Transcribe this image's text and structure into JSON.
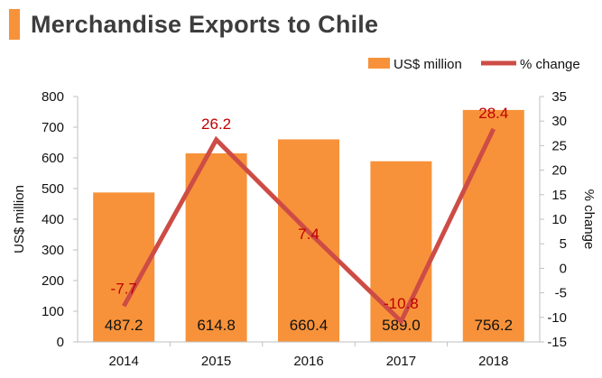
{
  "title": "Merchandise Exports to Chile",
  "colors": {
    "accent": "#f7923a",
    "bar": "#f7923a",
    "line": "#cd4c45",
    "pct_text": "#c00000",
    "axis": "#bfbfbf",
    "text": "#111111",
    "title": "#3d3d3d"
  },
  "chart_data": {
    "type": "bar",
    "categories": [
      "2014",
      "2015",
      "2016",
      "2017",
      "2018"
    ],
    "series": [
      {
        "name": "US$ million",
        "chart_type": "bar",
        "axis": "left",
        "values": [
          487.2,
          614.8,
          660.4,
          589.0,
          756.2
        ],
        "labels": [
          "487.2",
          "614.8",
          "660.4",
          "589.0",
          "756.2"
        ]
      },
      {
        "name": "% change",
        "chart_type": "line",
        "axis": "right",
        "values": [
          -7.7,
          26.2,
          7.4,
          -10.8,
          28.4
        ],
        "labels": [
          "-7.7",
          "26.2",
          "7.4",
          "-10.8",
          "28.4"
        ]
      }
    ],
    "ylabel": "US$ million",
    "y2label": "% change",
    "ylim": [
      0,
      800
    ],
    "y2lim": [
      -15,
      35
    ],
    "yticks": [
      "0",
      "100",
      "200",
      "300",
      "400",
      "500",
      "600",
      "700",
      "800"
    ],
    "y2ticks": [
      "-15",
      "-10",
      "-5",
      "0",
      "5",
      "10",
      "15",
      "20",
      "25",
      "30",
      "35"
    ],
    "legend": "top-right",
    "grid": false
  }
}
